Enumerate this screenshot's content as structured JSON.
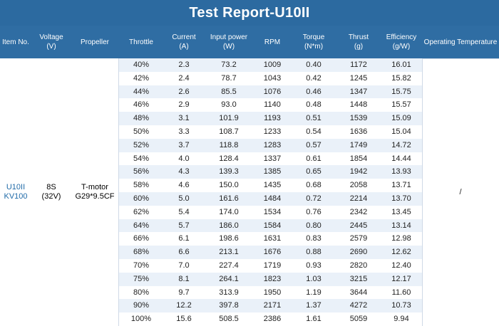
{
  "title": "Test Report-U10II",
  "columns": [
    "Item No.",
    "Voltage\n(V)",
    "Propeller",
    "Throttle",
    "Current\n(A)",
    "Input power\n(W)",
    "RPM",
    "Torque\n(N*m)",
    "Thrust\n(g)",
    "Efficiency\n(g/W)",
    "Operating Temperature"
  ],
  "item_no": "U10II\nKV100",
  "voltage": "8S\n(32V)",
  "propeller": "T-motor\nG29*9.5CF",
  "operating_temperature": "/",
  "rows": [
    {
      "throttle": "40%",
      "current": "2.3",
      "input_power": "73.2",
      "rpm": "1009",
      "torque": "0.40",
      "thrust": "1172",
      "efficiency": "16.01"
    },
    {
      "throttle": "42%",
      "current": "2.4",
      "input_power": "78.7",
      "rpm": "1043",
      "torque": "0.42",
      "thrust": "1245",
      "efficiency": "15.82"
    },
    {
      "throttle": "44%",
      "current": "2.6",
      "input_power": "85.5",
      "rpm": "1076",
      "torque": "0.46",
      "thrust": "1347",
      "efficiency": "15.75"
    },
    {
      "throttle": "46%",
      "current": "2.9",
      "input_power": "93.0",
      "rpm": "1140",
      "torque": "0.48",
      "thrust": "1448",
      "efficiency": "15.57"
    },
    {
      "throttle": "48%",
      "current": "3.1",
      "input_power": "101.9",
      "rpm": "1193",
      "torque": "0.51",
      "thrust": "1539",
      "efficiency": "15.09"
    },
    {
      "throttle": "50%",
      "current": "3.3",
      "input_power": "108.7",
      "rpm": "1233",
      "torque": "0.54",
      "thrust": "1636",
      "efficiency": "15.04"
    },
    {
      "throttle": "52%",
      "current": "3.7",
      "input_power": "118.8",
      "rpm": "1283",
      "torque": "0.57",
      "thrust": "1749",
      "efficiency": "14.72"
    },
    {
      "throttle": "54%",
      "current": "4.0",
      "input_power": "128.4",
      "rpm": "1337",
      "torque": "0.61",
      "thrust": "1854",
      "efficiency": "14.44"
    },
    {
      "throttle": "56%",
      "current": "4.3",
      "input_power": "139.3",
      "rpm": "1385",
      "torque": "0.65",
      "thrust": "1942",
      "efficiency": "13.93"
    },
    {
      "throttle": "58%",
      "current": "4.6",
      "input_power": "150.0",
      "rpm": "1435",
      "torque": "0.68",
      "thrust": "2058",
      "efficiency": "13.71"
    },
    {
      "throttle": "60%",
      "current": "5.0",
      "input_power": "161.6",
      "rpm": "1484",
      "torque": "0.72",
      "thrust": "2214",
      "efficiency": "13.70"
    },
    {
      "throttle": "62%",
      "current": "5.4",
      "input_power": "174.0",
      "rpm": "1534",
      "torque": "0.76",
      "thrust": "2342",
      "efficiency": "13.45"
    },
    {
      "throttle": "64%",
      "current": "5.7",
      "input_power": "186.0",
      "rpm": "1584",
      "torque": "0.80",
      "thrust": "2445",
      "efficiency": "13.14"
    },
    {
      "throttle": "66%",
      "current": "6.1",
      "input_power": "198.6",
      "rpm": "1631",
      "torque": "0.83",
      "thrust": "2579",
      "efficiency": "12.98"
    },
    {
      "throttle": "68%",
      "current": "6.6",
      "input_power": "213.1",
      "rpm": "1676",
      "torque": "0.88",
      "thrust": "2690",
      "efficiency": "12.62"
    },
    {
      "throttle": "70%",
      "current": "7.0",
      "input_power": "227.4",
      "rpm": "1719",
      "torque": "0.93",
      "thrust": "2820",
      "efficiency": "12.40"
    },
    {
      "throttle": "75%",
      "current": "8.1",
      "input_power": "264.1",
      "rpm": "1823",
      "torque": "1.03",
      "thrust": "3215",
      "efficiency": "12.17"
    },
    {
      "throttle": "80%",
      "current": "9.7",
      "input_power": "313.9",
      "rpm": "1950",
      "torque": "1.19",
      "thrust": "3644",
      "efficiency": "11.60"
    },
    {
      "throttle": "90%",
      "current": "12.2",
      "input_power": "397.8",
      "rpm": "2171",
      "torque": "1.37",
      "thrust": "4272",
      "efficiency": "10.73"
    },
    {
      "throttle": "100%",
      "current": "15.6",
      "input_power": "508.5",
      "rpm": "2386",
      "torque": "1.61",
      "thrust": "5059",
      "efficiency": "9.94"
    }
  ]
}
